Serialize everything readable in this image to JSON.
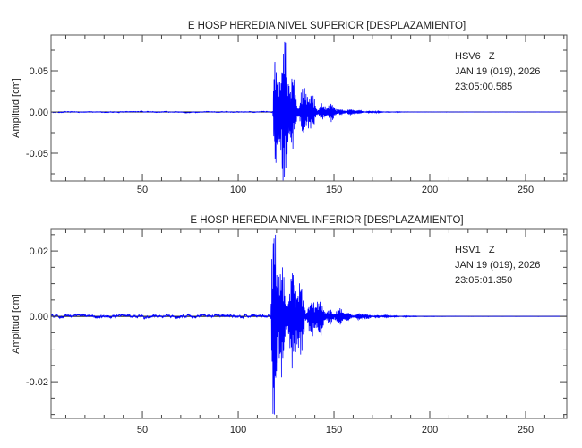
{
  "chart_data": [
    {
      "type": "line",
      "title": "E HOSP HEREDIA NIVEL SUPERIOR [DESPLAZAMIENTO]",
      "xlabel": "",
      "ylabel": "Amplitud [cm]",
      "xlim": [
        2.3,
        271.5
      ],
      "ylim": [
        -0.0837,
        0.0935
      ],
      "xticks": [
        50,
        100,
        150,
        200,
        250
      ],
      "xtick_labels": [
        "50",
        "100",
        "150",
        "200",
        "250"
      ],
      "x_minor_step": 10,
      "yticks": [
        -0.05,
        0.0,
        0.05
      ],
      "ytick_labels": [
        "-0.05",
        "0.00",
        "0.05"
      ],
      "y_minor_step": 0.025,
      "grid": false,
      "station": "HSV6   Z",
      "date": "JAN 19 (019), 2026",
      "time": "23:05:00.585",
      "series": [
        {
          "name": "HSV6 Z",
          "color": "#0000ff",
          "onset_s": 118,
          "peak_max": 0.085,
          "peak_min": -0.083,
          "noise_amp": 0.0008,
          "decay_s": 11,
          "seed": 7
        }
      ]
    },
    {
      "type": "line",
      "title": "E HOSP HEREDIA NIVEL INFERIOR [DESPLAZAMIENTO]",
      "xlabel": "",
      "ylabel": "Amplitud [cm]",
      "xlim": [
        2.3,
        271.5
      ],
      "ylim": [
        -0.0312,
        0.0266
      ],
      "xticks": [
        50,
        100,
        150,
        200,
        250
      ],
      "xtick_labels": [
        "50",
        "100",
        "150",
        "200",
        "250"
      ],
      "x_minor_step": 10,
      "yticks": [
        -0.02,
        0.0,
        0.02
      ],
      "ytick_labels": [
        "-0.02",
        "0.00",
        "0.02"
      ],
      "y_minor_step": 0.005,
      "grid": false,
      "station": "HSV1   Z",
      "date": "JAN 19 (019), 2026",
      "time": "23:05:01.350",
      "series": [
        {
          "name": "HSV1 Z",
          "color": "#0000ff",
          "onset_s": 117,
          "peak_max": 0.025,
          "peak_min": -0.03,
          "noise_amp": 0.0006,
          "decay_s": 13,
          "seed": 3
        }
      ]
    }
  ]
}
